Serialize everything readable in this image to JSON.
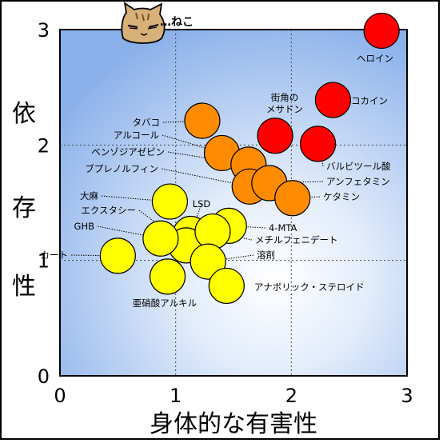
{
  "chart_data": {
    "type": "scatter",
    "xlabel": "身体的な有害性",
    "ylabel": "依存性",
    "xlim": [
      0,
      3
    ],
    "ylim": [
      0,
      3
    ],
    "x_ticks": [
      "0",
      "1",
      "2",
      "3"
    ],
    "y_ticks": [
      "0",
      "1",
      "2",
      "3"
    ],
    "grid": "dotted at 1 and 2",
    "logo_text": "…ねこ",
    "points": [
      {
        "label": "ヘロイン",
        "x": 2.78,
        "y": 2.99,
        "color": "#ff0000"
      },
      {
        "label": "コカイン",
        "x": 2.36,
        "y": 2.39,
        "color": "#ff0000"
      },
      {
        "label": "街角の\nメサドン",
        "x": 1.86,
        "y": 2.08,
        "color": "#ff0000"
      },
      {
        "label": "バルビツール酸",
        "x": 2.23,
        "y": 2.01,
        "color": "#ff0000"
      },
      {
        "label": "タバコ",
        "x": 1.23,
        "y": 2.21,
        "color": "#ff8c00"
      },
      {
        "label": "アルコール",
        "x": 1.4,
        "y": 1.93,
        "color": "#ff8c00"
      },
      {
        "label": "ベンゾジアゼピン",
        "x": 1.63,
        "y": 1.83,
        "color": "#ff8c00"
      },
      {
        "label": "ブプレノルフィン",
        "x": 1.64,
        "y": 1.64,
        "color": "#ff8c00"
      },
      {
        "label": "アンフェタミン",
        "x": 1.81,
        "y": 1.67,
        "color": "#ff8c00"
      },
      {
        "label": "ケタミン",
        "x": 2.01,
        "y": 1.54,
        "color": "#ff8c00"
      },
      {
        "label": "大麻",
        "x": 0.95,
        "y": 1.51,
        "color": "#ffff00"
      },
      {
        "label": "LSD",
        "x": 1.13,
        "y": 1.23,
        "color": "#ffff00"
      },
      {
        "label": "エクスタシー",
        "x": 1.09,
        "y": 1.13,
        "color": "#ffff00"
      },
      {
        "label": "GHB",
        "x": 0.87,
        "y": 1.19,
        "color": "#ffff00"
      },
      {
        "label": "4-MTA",
        "x": 1.46,
        "y": 1.3,
        "color": "#ffff00"
      },
      {
        "label": "メチルフェニデート",
        "x": 1.32,
        "y": 1.25,
        "color": "#ffff00"
      },
      {
        "label": "溶剤",
        "x": 1.28,
        "y": 0.99,
        "color": "#ffff00"
      },
      {
        "label": "カート",
        "x": 0.5,
        "y": 1.04,
        "color": "#ffff00"
      },
      {
        "label": "亜硝酸アルキル",
        "x": 0.93,
        "y": 0.86,
        "color": "#ffff00"
      },
      {
        "label": "アナボリック・ステロイド",
        "x": 1.44,
        "y": 0.78,
        "color": "#ffff00"
      }
    ]
  }
}
